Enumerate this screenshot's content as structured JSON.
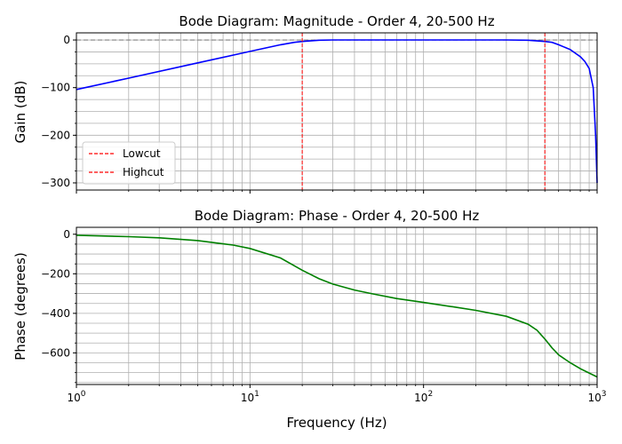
{
  "chart_data": [
    {
      "type": "line",
      "title": "Bode Diagram: Magnitude - Order 4, 20-500 Hz",
      "xlabel": "",
      "ylabel": "Gain (dB)",
      "xscale": "log",
      "xlim": [
        1,
        1000
      ],
      "ylim": [
        -315,
        15
      ],
      "yticks": [
        0,
        -100,
        -200,
        -300
      ],
      "yticklabels": [
        "0",
        "−100",
        "−200",
        "−300"
      ],
      "xticks_visible": false,
      "grid": true,
      "reference_line": {
        "y": 0,
        "style": "dashed",
        "color": "#808080"
      },
      "series": [
        {
          "color": "#0000ff",
          "x": [
            1,
            2,
            5,
            10,
            15,
            18,
            20,
            25,
            30,
            50,
            100,
            200,
            300,
            400,
            500,
            550,
            600,
            700,
            800,
            850,
            900,
            950,
            980,
            1000
          ],
          "y": [
            -104,
            -80,
            -48,
            -24,
            -10,
            -5,
            -3,
            -0.5,
            0,
            0,
            0,
            0,
            0,
            -0.5,
            -3,
            -5,
            -10,
            -20,
            -35,
            -45,
            -60,
            -100,
            -200,
            -300
          ]
        }
      ],
      "vlines": [
        {
          "name": "Lowcut",
          "x": 20,
          "color": "#ff0000",
          "style": "dashed"
        },
        {
          "name": "Highcut",
          "x": 500,
          "color": "#ff0000",
          "style": "dashed"
        }
      ],
      "legend": {
        "placement": "lower-left",
        "entries": [
          {
            "label": "Lowcut",
            "color": "#ff0000",
            "style": "dashed"
          },
          {
            "label": "Highcut",
            "color": "#ff0000",
            "style": "dashed"
          }
        ]
      }
    },
    {
      "type": "line",
      "title": "Bode Diagram: Phase - Order 4, 20-500 Hz",
      "xlabel": "Frequency (Hz)",
      "ylabel": "Phase (degrees)",
      "xscale": "log",
      "xlim": [
        1,
        1000
      ],
      "ylim": [
        -760,
        35
      ],
      "yticks": [
        0,
        -200,
        -400,
        -600
      ],
      "yticklabels": [
        "0",
        "−200",
        "−400",
        "−600"
      ],
      "xticks": [
        1,
        10,
        100,
        1000
      ],
      "grid": true,
      "series": [
        {
          "color": "#008000",
          "x": [
            1,
            2,
            3,
            5,
            8,
            10,
            15,
            20,
            25,
            30,
            40,
            50,
            70,
            100,
            150,
            200,
            300,
            400,
            450,
            500,
            550,
            600,
            700,
            800,
            900,
            1000
          ],
          "y": [
            -5,
            -12,
            -18,
            -32,
            -55,
            -72,
            -120,
            -182,
            -225,
            -252,
            -282,
            -300,
            -325,
            -345,
            -368,
            -385,
            -415,
            -455,
            -485,
            -530,
            -575,
            -610,
            -650,
            -680,
            -702,
            -722
          ]
        }
      ]
    }
  ]
}
